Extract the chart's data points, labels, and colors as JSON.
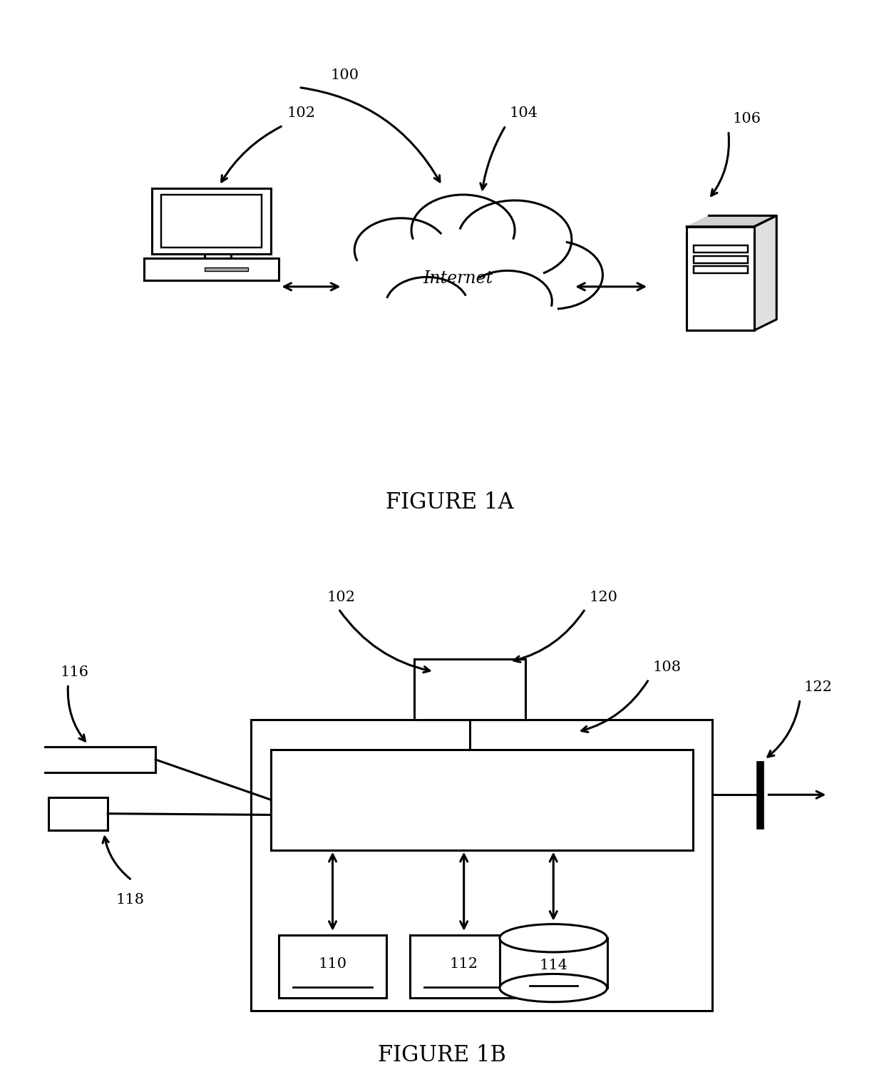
{
  "bg_color": "#ffffff",
  "line_color": "#000000",
  "fig1a_title": "FIGURE 1A",
  "fig1b_title": "FIGURE 1B"
}
